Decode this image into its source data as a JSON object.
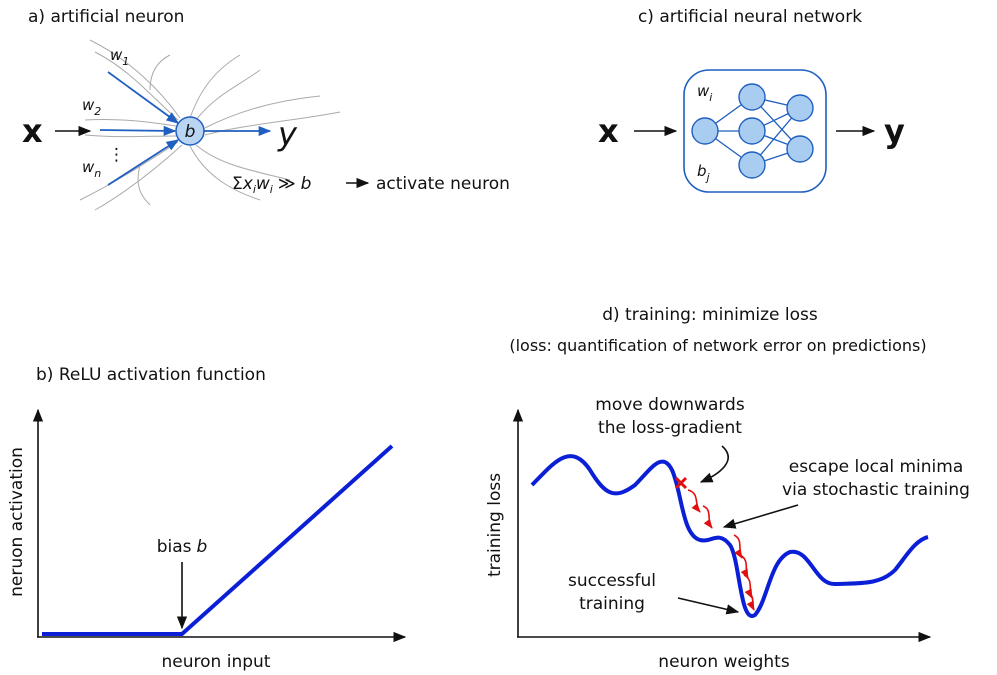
{
  "neuron": {
    "title": "a) artificial neuron",
    "input": "x",
    "output": "y",
    "bias": "b",
    "weights": [
      {
        "base": "w",
        "sub": "1"
      },
      {
        "base": "w",
        "sub": "2"
      },
      {
        "base": "w",
        "sub": "n"
      }
    ],
    "dots": "⋮",
    "rule": {
      "sum": "Σ",
      "terms": [
        {
          "base": "x",
          "sub": "i"
        },
        {
          "base": "w",
          "sub": "i"
        }
      ],
      "relation": "≫",
      "threshold": "b",
      "result": "activate neuron"
    }
  },
  "network": {
    "title": "c) artificial neural network",
    "input": "x",
    "output": "y",
    "weight": {
      "base": "w",
      "sub": "i"
    },
    "bias": {
      "base": "b",
      "sub": "j"
    }
  },
  "relu": {
    "title": "b) ReLU activation function",
    "y_label": "neruon activation",
    "x_label": "neuron input",
    "annotation": {
      "text": "bias",
      "var": "b"
    }
  },
  "training": {
    "title": "d) training: minimize loss",
    "subtitle": "(loss: quantification of network error on predictions)",
    "y_label": "training loss",
    "x_label": "neuron weights",
    "gradient_note": [
      "move downwards",
      "the loss-gradient"
    ],
    "escape_note": [
      "escape local minima",
      "via stochastic training"
    ],
    "success_note": [
      "successful",
      "training"
    ]
  }
}
